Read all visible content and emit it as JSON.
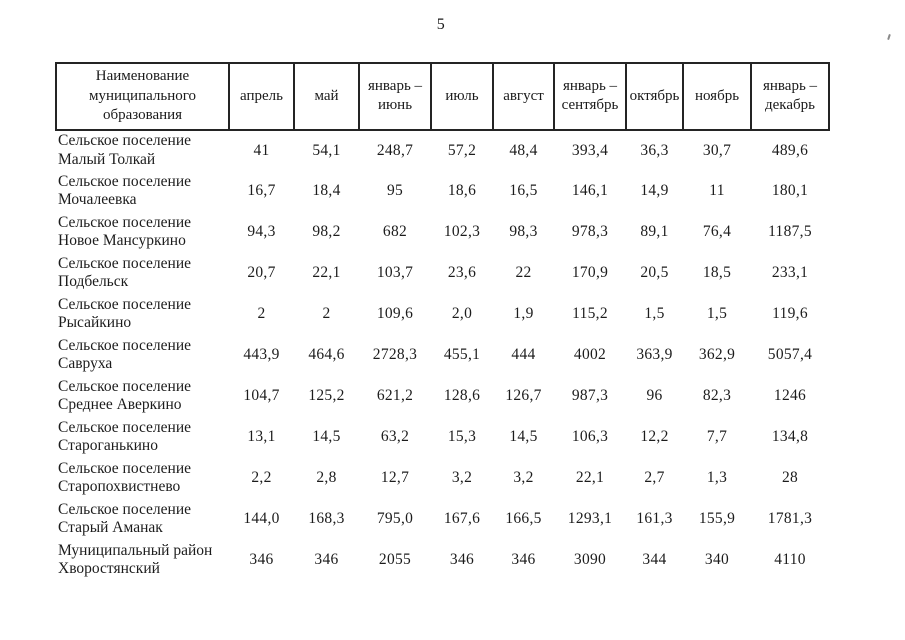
{
  "page": {
    "number": "5"
  },
  "table": {
    "columns": [
      {
        "label": "Наименование муниципального образования"
      },
      {
        "label": "апрель"
      },
      {
        "label": "май"
      },
      {
        "label": "январь – июнь"
      },
      {
        "label": "июль"
      },
      {
        "label": "август"
      },
      {
        "label": "январь – сентябрь"
      },
      {
        "label": "октябрь"
      },
      {
        "label": "ноябрь"
      },
      {
        "label": "январь – декабрь"
      }
    ],
    "rows": [
      {
        "name": "Сельское поселение Малый Толкай",
        "values": [
          "41",
          "54,1",
          "248,7",
          "57,2",
          "48,4",
          "393,4",
          "36,3",
          "30,7",
          "489,6"
        ]
      },
      {
        "name": "Сельское поселение Мочалеевка",
        "values": [
          "16,7",
          "18,4",
          "95",
          "18,6",
          "16,5",
          "146,1",
          "14,9",
          "11",
          "180,1"
        ]
      },
      {
        "name": "Сельское поселение Новое Мансуркино",
        "values": [
          "94,3",
          "98,2",
          "682",
          "102,3",
          "98,3",
          "978,3",
          "89,1",
          "76,4",
          "1187,5"
        ]
      },
      {
        "name": "Сельское поселение Подбельск",
        "values": [
          "20,7",
          "22,1",
          "103,7",
          "23,6",
          "22",
          "170,9",
          "20,5",
          "18,5",
          "233,1"
        ]
      },
      {
        "name": "Сельское поселение Рысайкино",
        "values": [
          "2",
          "2",
          "109,6",
          "2,0",
          "1,9",
          "115,2",
          "1,5",
          "1,5",
          "119,6"
        ]
      },
      {
        "name": "Сельское поселение Савруха",
        "values": [
          "443,9",
          "464,6",
          "2728,3",
          "455,1",
          "444",
          "4002",
          "363,9",
          "362,9",
          "5057,4"
        ]
      },
      {
        "name": "Сельское поселение Среднее Аверкино",
        "values": [
          "104,7",
          "125,2",
          "621,2",
          "128,6",
          "126,7",
          "987,3",
          "96",
          "82,3",
          "1246"
        ]
      },
      {
        "name": "Сельское поселение Староганькино",
        "values": [
          "13,1",
          "14,5",
          "63,2",
          "15,3",
          "14,5",
          "106,3",
          "12,2",
          "7,7",
          "134,8"
        ]
      },
      {
        "name": "Сельское поселение Старопохвистнево",
        "values": [
          "2,2",
          "2,8",
          "12,7",
          "3,2",
          "3,2",
          "22,1",
          "2,7",
          "1,3",
          "28"
        ]
      },
      {
        "name": "Сельское поселение Старый Аманак",
        "values": [
          "144,0",
          "168,3",
          "795,0",
          "167,6",
          "166,5",
          "1293,1",
          "161,3",
          "155,9",
          "1781,3"
        ]
      },
      {
        "name": "Муниципальный район Хворостянский",
        "values": [
          "346",
          "346",
          "2055",
          "346",
          "346",
          "3090",
          "344",
          "340",
          "4110"
        ]
      }
    ]
  }
}
